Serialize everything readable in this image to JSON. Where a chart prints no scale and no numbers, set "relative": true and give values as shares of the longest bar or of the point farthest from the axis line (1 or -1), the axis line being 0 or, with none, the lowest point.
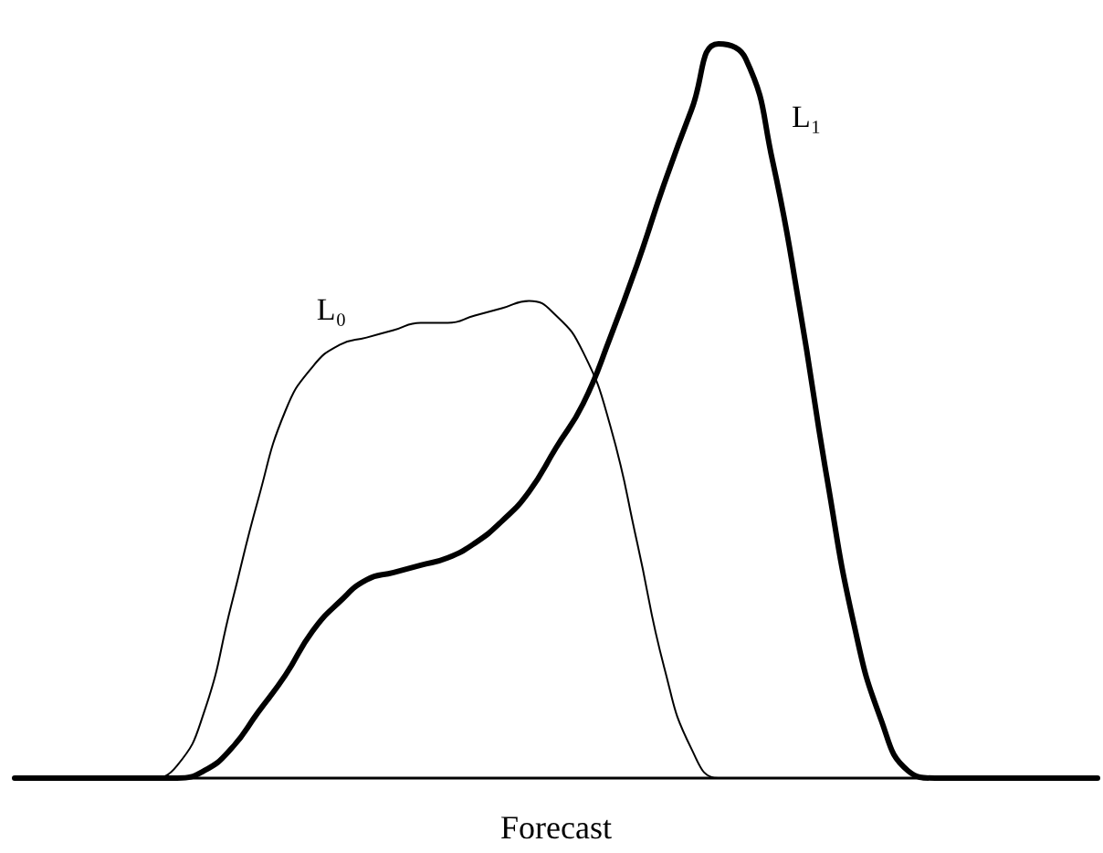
{
  "chart_data": {
    "type": "line",
    "xlabel": "Forecast",
    "relative": true,
    "grid": false,
    "legend": false,
    "marker": "none",
    "line_style": "solid",
    "categories": [
      null,
      null,
      null,
      null,
      null,
      null,
      null,
      null,
      null,
      null,
      null,
      null,
      null,
      null,
      null,
      null,
      null,
      null,
      null,
      null,
      null,
      null,
      null,
      null,
      null,
      null,
      null,
      null,
      null,
      null,
      null,
      null,
      null,
      null,
      null,
      null,
      null,
      null,
      null,
      null,
      null
    ],
    "series": [
      {
        "name": "L₀",
        "color": "#000000",
        "values": [
          0,
          0,
          0,
          0,
          0,
          0,
          0.017,
          0.09,
          0.235,
          0.38,
          0.5,
          0.56,
          0.59,
          0.6,
          0.61,
          0.62,
          0.62,
          0.63,
          0.64,
          0.65,
          0.63,
          0.58,
          0.48,
          0.32,
          0.15,
          0.04,
          0,
          0,
          0,
          0,
          0,
          0,
          0,
          0,
          0,
          0,
          0,
          0,
          0,
          0,
          0
        ]
      },
      {
        "name": "L₁",
        "color": "#000000",
        "values": [
          0,
          0,
          0,
          0,
          0,
          0,
          0,
          0.01,
          0.04,
          0.09,
          0.14,
          0.2,
          0.24,
          0.27,
          0.28,
          0.29,
          0.3,
          0.32,
          0.35,
          0.39,
          0.45,
          0.51,
          0.6,
          0.7,
          0.81,
          0.91,
          1,
          0.98,
          0.84,
          0.64,
          0.41,
          0.21,
          0.08,
          0.01,
          0,
          0,
          0,
          0,
          0,
          0,
          0
        ]
      }
    ]
  }
}
